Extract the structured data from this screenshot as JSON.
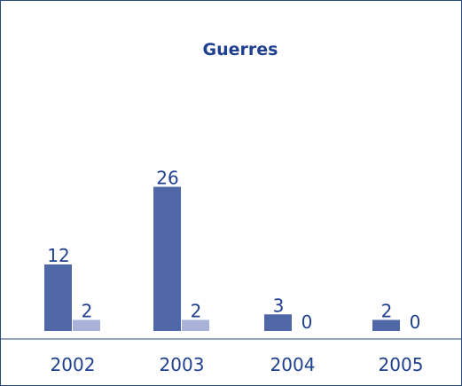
{
  "chart_data": {
    "type": "bar",
    "title": "Guerres",
    "categories": [
      "2002",
      "2003",
      "2004",
      "2005"
    ],
    "series": [
      {
        "color": "#5068a8",
        "values": [
          12,
          26,
          3,
          2
        ]
      },
      {
        "color": "#a9b3d9",
        "values": [
          2,
          2,
          0,
          0
        ]
      }
    ],
    "ylim": [
      0,
      28
    ]
  }
}
